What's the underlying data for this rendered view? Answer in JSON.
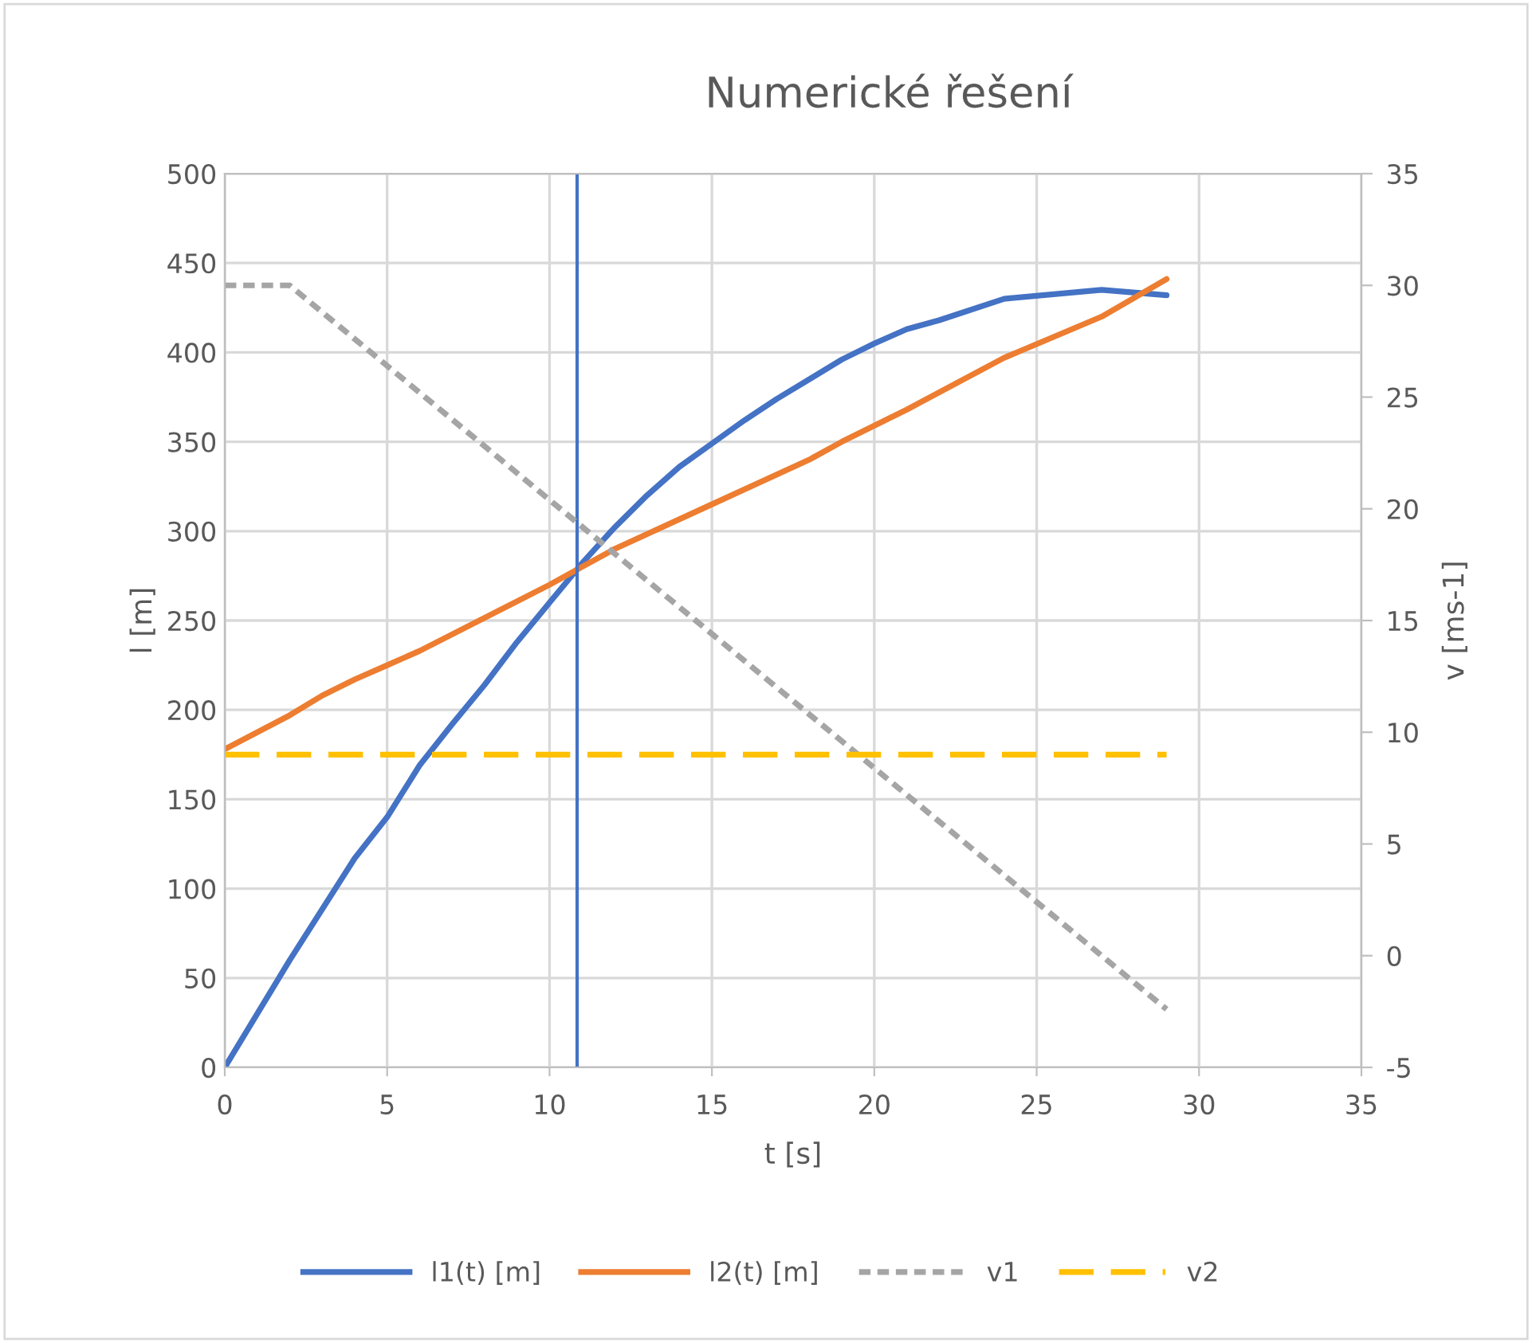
{
  "chart_data": {
    "type": "line",
    "title": "Numerické řešení",
    "xlabel": "t [s]",
    "ylabel": "l [m]",
    "y2label": "v [ms-1]",
    "xlim": [
      0,
      35
    ],
    "xticks": [
      0,
      5,
      10,
      15,
      20,
      25,
      30,
      35
    ],
    "ylim": [
      0,
      500
    ],
    "yticks": [
      0,
      50,
      100,
      150,
      200,
      250,
      300,
      350,
      400,
      450,
      500
    ],
    "y2lim": [
      -5,
      35
    ],
    "y2ticks": [
      -5,
      0,
      5,
      10,
      15,
      20,
      25,
      30,
      35
    ],
    "grid": true,
    "legend": "bottom",
    "marker": "none",
    "series": [
      {
        "name": "l1(t) [m]",
        "color": "#4472c4",
        "line_style": "solid",
        "x": [
          0,
          2,
          4,
          5,
          6,
          7,
          8,
          9,
          10,
          11,
          12,
          13,
          14,
          15,
          16,
          17,
          18,
          19,
          20,
          21,
          22,
          24,
          27,
          29
        ],
        "values": [
          0,
          60,
          117,
          140,
          169,
          192,
          214,
          238,
          260,
          282,
          302,
          320,
          336,
          349,
          362,
          374,
          385,
          396,
          405,
          413,
          418,
          430,
          435,
          432
        ]
      },
      {
        "name": "l2(t) [m]",
        "color": "#ed7d31",
        "line_style": "solid",
        "x": [
          0,
          2,
          3,
          4,
          5,
          6,
          10,
          11,
          12,
          15,
          18,
          19,
          21,
          24,
          27,
          29
        ],
        "values": [
          178,
          197,
          208,
          217,
          225,
          233,
          270,
          280,
          290,
          315,
          340,
          350,
          368,
          397,
          420,
          441
        ]
      },
      {
        "name": "v1",
        "color": "#a5a5a5",
        "line_style": "dotted",
        "axis": "y2",
        "x": [
          0,
          2,
          29
        ],
        "values": [
          30,
          30,
          -2.4
        ]
      },
      {
        "name": "v2",
        "color": "#ffc000",
        "line_style": "dashed",
        "axis": "y2",
        "x": [
          0,
          29
        ],
        "values": [
          9,
          9
        ]
      }
    ],
    "ref_lines": [
      {
        "axis": "x",
        "value": 10.85,
        "color": "#4472c4",
        "line_style": "solid"
      }
    ]
  }
}
